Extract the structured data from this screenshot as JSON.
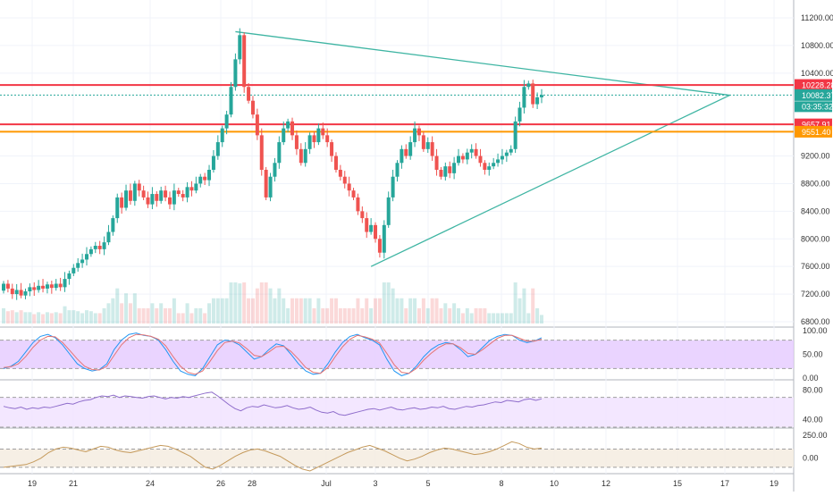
{
  "colors": {
    "up": "#26a69a",
    "down": "#ef5350",
    "res_line": "#f23645",
    "sup_line": "#ff9800",
    "trend": "#3fb5a3",
    "panel_fill": "#f1e3ff",
    "panel_fill_stoch": "#e6ccff",
    "panel_fill_cci": "#f5ece0",
    "stoch_k": "#2196f3",
    "stoch_d": "#e57373",
    "rsi": "#8e6ccb",
    "cci": "#c59a5c",
    "grid": "#f0f3fa",
    "axis_text": "#333333"
  },
  "chart_data": [
    {
      "type": "candlestick",
      "panel": "price",
      "y_ticks": [
        "11200.00",
        "10800.00",
        "10400.00",
        "9200.00",
        "8800.00",
        "8400.00",
        "8000.00",
        "7600.00",
        "7200.00",
        "6800.00"
      ],
      "ylim": [
        6800,
        11200
      ],
      "price_labels": [
        {
          "text": "10228.28",
          "value": 10228.28,
          "role": "resistance"
        },
        {
          "text": "10082.37",
          "value": 10082.37,
          "role": "last"
        },
        {
          "text": "03:35:32",
          "role": "countdown"
        },
        {
          "text": "9657.91",
          "value": 9657.91,
          "role": "level"
        },
        {
          "text": "9551.40",
          "value": 9551.4,
          "role": "support"
        }
      ],
      "hlines": [
        10228.28,
        9657.91,
        9551.4
      ],
      "last_price": 10082.37,
      "x_ticks": [
        "19",
        "21",
        "24",
        "26",
        "28",
        "Jul",
        "3",
        "5",
        "8",
        "10",
        "12",
        "15",
        "17",
        "19"
      ],
      "candles": [
        [
          7250,
          7350
        ],
        [
          7350,
          7280
        ],
        [
          7280,
          7200
        ],
        [
          7200,
          7260
        ],
        [
          7260,
          7180
        ],
        [
          7180,
          7240
        ],
        [
          7240,
          7300
        ],
        [
          7300,
          7260
        ],
        [
          7260,
          7320
        ],
        [
          7320,
          7280
        ],
        [
          7280,
          7340
        ],
        [
          7340,
          7290
        ],
        [
          7290,
          7350
        ],
        [
          7350,
          7300
        ],
        [
          7300,
          7420
        ],
        [
          7420,
          7500
        ],
        [
          7500,
          7580
        ],
        [
          7580,
          7650
        ],
        [
          7650,
          7700
        ],
        [
          7700,
          7780
        ],
        [
          7780,
          7850
        ],
        [
          7850,
          7900
        ],
        [
          7900,
          7850
        ],
        [
          7850,
          7950
        ],
        [
          7950,
          8100
        ],
        [
          8100,
          8300
        ],
        [
          8300,
          8600
        ],
        [
          8600,
          8450
        ],
        [
          8450,
          8700
        ],
        [
          8700,
          8550
        ],
        [
          8550,
          8800
        ],
        [
          8800,
          8700
        ],
        [
          8700,
          8600
        ],
        [
          8600,
          8500
        ],
        [
          8500,
          8650
        ],
        [
          8650,
          8550
        ],
        [
          8550,
          8700
        ],
        [
          8700,
          8600
        ],
        [
          8600,
          8500
        ],
        [
          8500,
          8700
        ],
        [
          8700,
          8650
        ],
        [
          8650,
          8600
        ],
        [
          8600,
          8750
        ],
        [
          8750,
          8700
        ],
        [
          8700,
          8800
        ],
        [
          8800,
          8900
        ],
        [
          8900,
          8850
        ],
        [
          8850,
          9000
        ],
        [
          9000,
          9200
        ],
        [
          9200,
          9400
        ],
        [
          9400,
          9600
        ],
        [
          9600,
          9800
        ],
        [
          9800,
          10200
        ],
        [
          10200,
          10600
        ],
        [
          10600,
          10950
        ],
        [
          10950,
          10200
        ],
        [
          10200,
          10000
        ],
        [
          10000,
          9800
        ],
        [
          9800,
          9500
        ],
        [
          9500,
          9000
        ],
        [
          9000,
          8600
        ],
        [
          8600,
          8900
        ],
        [
          8900,
          9100
        ],
        [
          9100,
          9400
        ],
        [
          9400,
          9600
        ],
        [
          9600,
          9700
        ],
        [
          9700,
          9500
        ],
        [
          9500,
          9300
        ],
        [
          9300,
          9100
        ],
        [
          9100,
          9300
        ],
        [
          9300,
          9500
        ],
        [
          9500,
          9400
        ],
        [
          9400,
          9600
        ],
        [
          9600,
          9500
        ],
        [
          9500,
          9400
        ],
        [
          9400,
          9200
        ],
        [
          9200,
          9000
        ],
        [
          9000,
          8900
        ],
        [
          8900,
          8800
        ],
        [
          8800,
          8700
        ],
        [
          8700,
          8600
        ],
        [
          8600,
          8400
        ],
        [
          8400,
          8300
        ],
        [
          8300,
          8100
        ],
        [
          8100,
          8200
        ],
        [
          8200,
          8000
        ],
        [
          8000,
          7800
        ],
        [
          7800,
          8200
        ],
        [
          8200,
          8600
        ],
        [
          8600,
          8900
        ],
        [
          8900,
          9100
        ],
        [
          9100,
          9300
        ],
        [
          9300,
          9200
        ],
        [
          9200,
          9400
        ],
        [
          9400,
          9600
        ],
        [
          9600,
          9500
        ],
        [
          9500,
          9300
        ],
        [
          9300,
          9400
        ],
        [
          9400,
          9200
        ],
        [
          9200,
          9000
        ],
        [
          9000,
          8900
        ],
        [
          8900,
          9050
        ],
        [
          9050,
          8950
        ],
        [
          8950,
          9100
        ],
        [
          9100,
          9200
        ],
        [
          9200,
          9150
        ],
        [
          9150,
          9250
        ],
        [
          9250,
          9300
        ],
        [
          9300,
          9200
        ],
        [
          9200,
          9100
        ],
        [
          9100,
          9000
        ],
        [
          9000,
          9050
        ],
        [
          9050,
          9100
        ],
        [
          9100,
          9150
        ],
        [
          9150,
          9200
        ],
        [
          9200,
          9250
        ],
        [
          9250,
          9300
        ],
        [
          9300,
          9700
        ],
        [
          9700,
          9900
        ],
        [
          9900,
          10200
        ],
        [
          10200,
          10250
        ],
        [
          10250,
          9950
        ],
        [
          9950,
          10050
        ],
        [
          10050,
          10082.37
        ]
      ],
      "trendlines": [
        {
          "from": [
            53,
            11000
          ],
          "to": [
            166,
            10080
          ]
        },
        {
          "from": [
            84,
            7600
          ],
          "to": [
            166,
            10080
          ]
        }
      ]
    },
    {
      "type": "line",
      "panel": "stoch",
      "y_ticks": [
        "100.00",
        "50.00",
        "0.00"
      ],
      "ylim": [
        0,
        100
      ],
      "bands": [
        80,
        20
      ],
      "series": [
        {
          "values": [
            20,
            25,
            35,
            55,
            75,
            88,
            92,
            85,
            70,
            50,
            30,
            20,
            15,
            18,
            30,
            60,
            80,
            92,
            95,
            90,
            88,
            80,
            60,
            35,
            15,
            8,
            5,
            20,
            45,
            70,
            80,
            78,
            70,
            55,
            40,
            45,
            60,
            72,
            68,
            50,
            30,
            15,
            8,
            10,
            30,
            55,
            75,
            88,
            92,
            85,
            80,
            70,
            40,
            15,
            5,
            10,
            25,
            45,
            60,
            70,
            75,
            72,
            60,
            45,
            50,
            65,
            80,
            88,
            92,
            90,
            80,
            75,
            78,
            85
          ]
        },
        {
          "values": [
            22,
            24,
            30,
            45,
            65,
            80,
            88,
            87,
            75,
            58,
            40,
            25,
            18,
            17,
            25,
            48,
            70,
            85,
            92,
            91,
            88,
            82,
            68,
            45,
            25,
            12,
            8,
            15,
            35,
            58,
            75,
            78,
            74,
            62,
            48,
            45,
            55,
            66,
            67,
            56,
            40,
            22,
            12,
            10,
            22,
            45,
            66,
            82,
            90,
            87,
            82,
            74,
            52,
            28,
            12,
            10,
            20,
            38,
            52,
            64,
            72,
            72,
            64,
            52,
            50,
            60,
            72,
            84,
            90,
            90,
            84,
            78,
            78,
            82
          ]
        }
      ]
    },
    {
      "type": "line",
      "panel": "rsi",
      "y_ticks": [
        "80.00",
        "40.00"
      ],
      "ylim": [
        30,
        90
      ],
      "bands": [
        70,
        30
      ],
      "series": [
        {
          "values": [
            58,
            56,
            55,
            57,
            54,
            56,
            55,
            57,
            56,
            58,
            60,
            62,
            61,
            64,
            66,
            67,
            70,
            72,
            71,
            73,
            70,
            72,
            71,
            70,
            69,
            71,
            72,
            70,
            68,
            70,
            69,
            71,
            70,
            72,
            74,
            76,
            77,
            72,
            66,
            60,
            55,
            52,
            56,
            58,
            57,
            60,
            58,
            56,
            57,
            59,
            56,
            54,
            55,
            57,
            53,
            50,
            49,
            51,
            47,
            46,
            48,
            50,
            52,
            54,
            55,
            53,
            55,
            57,
            54,
            53,
            55,
            56,
            54,
            55,
            57,
            56,
            58,
            55,
            54,
            56,
            58,
            57,
            59,
            60,
            62,
            64,
            63,
            66,
            65,
            64,
            67,
            68,
            66,
            68
          ]
        }
      ]
    },
    {
      "type": "line",
      "panel": "cci",
      "y_ticks": [
        "250.00",
        "0.00"
      ],
      "ylim": [
        -150,
        300
      ],
      "bands": [
        100,
        -100
      ],
      "series": [
        {
          "values": [
            -100,
            -90,
            -80,
            -70,
            -40,
            0,
            60,
            100,
            120,
            110,
            90,
            70,
            100,
            130,
            120,
            90,
            70,
            60,
            80,
            100,
            120,
            140,
            130,
            100,
            60,
            20,
            -40,
            -100,
            -120,
            -80,
            -30,
            20,
            60,
            90,
            100,
            80,
            50,
            20,
            -30,
            -80,
            -120,
            -140,
            -100,
            -60,
            -20,
            20,
            60,
            90,
            120,
            140,
            110,
            80,
            40,
            0,
            -30,
            -10,
            20,
            60,
            90,
            110,
            100,
            80,
            60,
            40,
            50,
            70,
            100,
            140,
            180,
            160,
            120,
            100,
            110
          ]
        }
      ]
    }
  ]
}
